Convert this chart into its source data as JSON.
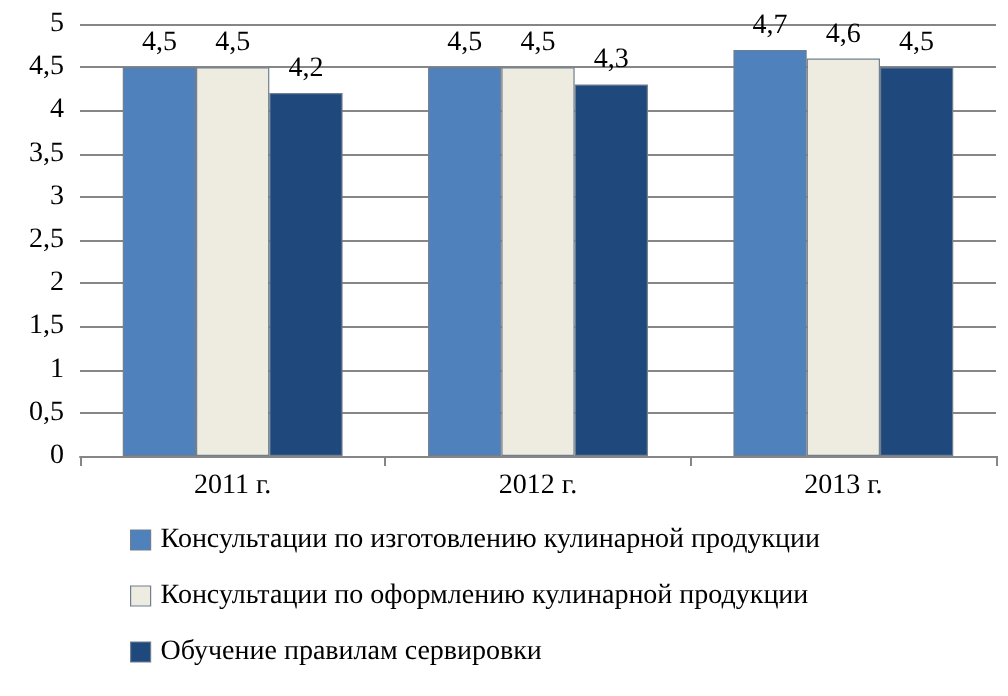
{
  "chart_data": {
    "type": "bar",
    "categories": [
      "2011 г.",
      "2012 г.",
      "2013 г."
    ],
    "series": [
      {
        "name": "Консультации по изготовлению кулинарной продукции",
        "color": "#4f81bd",
        "values": [
          4.5,
          4.5,
          4.7
        ],
        "value_labels": [
          "4,5",
          "4,5",
          "4,7"
        ]
      },
      {
        "name": "Консультации по оформлению кулинарной продукции",
        "color": "#eeece1",
        "values": [
          4.5,
          4.5,
          4.6
        ],
        "value_labels": [
          "4,5",
          "4,5",
          "4,6"
        ]
      },
      {
        "name": "Обучение правилам сервировки",
        "color": "#1f497d",
        "values": [
          4.2,
          4.3,
          4.5
        ],
        "value_labels": [
          "4,2",
          "4,3",
          "4,5"
        ]
      }
    ],
    "ylim": [
      0,
      5
    ],
    "yticks": [
      0,
      {
        "value": 0.5,
        "label": "0,5"
      },
      1,
      {
        "value": 1.5,
        "label": "1,5"
      },
      2,
      {
        "value": 2.5,
        "label": "2,5"
      },
      3,
      {
        "value": 3.5,
        "label": "3,5"
      },
      4,
      {
        "value": 4.5,
        "label": "4,5"
      },
      5
    ],
    "grid": "y",
    "legend": "bottom"
  }
}
